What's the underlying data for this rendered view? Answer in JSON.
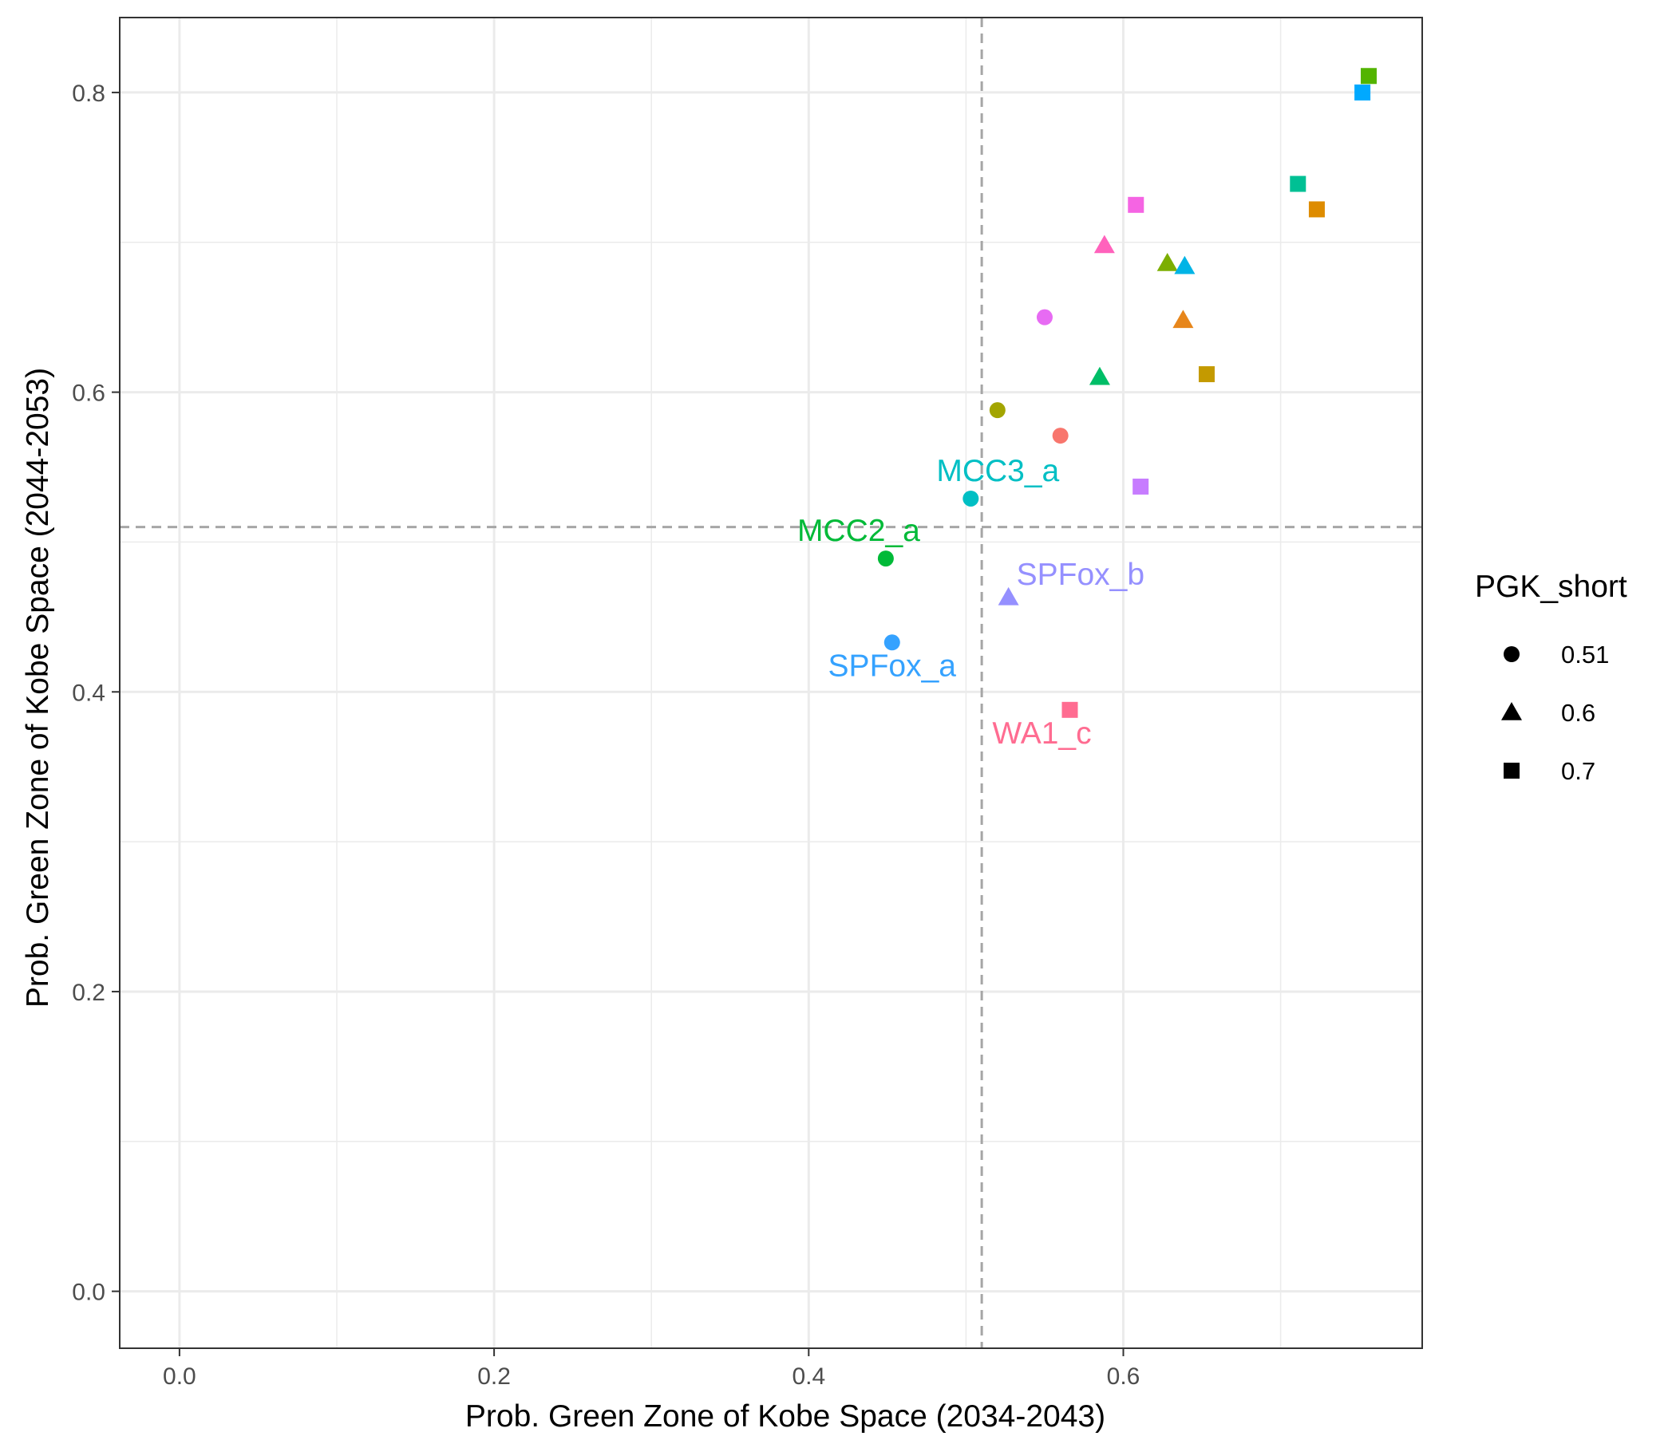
{
  "chart_data": {
    "type": "scatter",
    "title": "",
    "xlabel": "Prob. Green Zone of Kobe Space (2034-2043)",
    "ylabel": "Prob. Green Zone of Kobe Space (2044-2053)",
    "xlim": [
      -0.038,
      0.79
    ],
    "ylim": [
      -0.038,
      0.85
    ],
    "x_ticks": [
      0.0,
      0.2,
      0.4,
      0.6
    ],
    "y_ticks": [
      0.0,
      0.2,
      0.4,
      0.6,
      0.8
    ],
    "x_tick_labels": [
      "0.0",
      "0.2",
      "0.4",
      "0.6"
    ],
    "y_tick_labels": [
      "0.0",
      "0.2",
      "0.4",
      "0.6",
      "0.8"
    ],
    "grid": true,
    "reference_lines": {
      "vertical_x": 0.51,
      "horizontal_y": 0.51,
      "color": "#a6a6a6"
    },
    "legend": {
      "title": "PGK_short",
      "position": "right",
      "entries": [
        {
          "label": "0.51",
          "shape": "circle"
        },
        {
          "label": "0.6",
          "shape": "triangle"
        },
        {
          "label": "0.7",
          "shape": "square"
        }
      ]
    },
    "points": [
      {
        "x": 0.56,
        "y": 0.571,
        "shape": "circle",
        "color": "#F8766D"
      },
      {
        "x": 0.52,
        "y": 0.588,
        "shape": "circle",
        "color": "#A3A500"
      },
      {
        "x": 0.449,
        "y": 0.489,
        "shape": "circle",
        "color": "#00BA38",
        "label": "MCC2_a"
      },
      {
        "x": 0.503,
        "y": 0.529,
        "shape": "circle",
        "color": "#00BFC4",
        "label": "MCC3_a"
      },
      {
        "x": 0.453,
        "y": 0.433,
        "shape": "circle",
        "color": "#35A2FF",
        "label": "SPFox_a"
      },
      {
        "x": 0.55,
        "y": 0.65,
        "shape": "circle",
        "color": "#E76BF3"
      },
      {
        "x": 0.638,
        "y": 0.648,
        "shape": "triangle",
        "color": "#E7861B"
      },
      {
        "x": 0.628,
        "y": 0.686,
        "shape": "triangle",
        "color": "#7CAE00"
      },
      {
        "x": 0.585,
        "y": 0.61,
        "shape": "triangle",
        "color": "#00BE67"
      },
      {
        "x": 0.639,
        "y": 0.684,
        "shape": "triangle",
        "color": "#00B4E6"
      },
      {
        "x": 0.527,
        "y": 0.463,
        "shape": "triangle",
        "color": "#9590FF",
        "label": "SPFox_b"
      },
      {
        "x": 0.588,
        "y": 0.698,
        "shape": "triangle",
        "color": "#FF62BC"
      },
      {
        "x": 0.723,
        "y": 0.722,
        "shape": "square",
        "color": "#DE8C00"
      },
      {
        "x": 0.653,
        "y": 0.612,
        "shape": "square",
        "color": "#C49A00"
      },
      {
        "x": 0.756,
        "y": 0.811,
        "shape": "square",
        "color": "#53B400"
      },
      {
        "x": 0.711,
        "y": 0.739,
        "shape": "square",
        "color": "#00C094"
      },
      {
        "x": 0.752,
        "y": 0.8,
        "shape": "square",
        "color": "#00A9FF"
      },
      {
        "x": 0.611,
        "y": 0.537,
        "shape": "square",
        "color": "#C77CFF"
      },
      {
        "x": 0.608,
        "y": 0.725,
        "shape": "square",
        "color": "#F564E3"
      },
      {
        "x": 0.566,
        "y": 0.388,
        "shape": "square",
        "color": "#FF6C91",
        "label": "WA1_c"
      }
    ]
  }
}
